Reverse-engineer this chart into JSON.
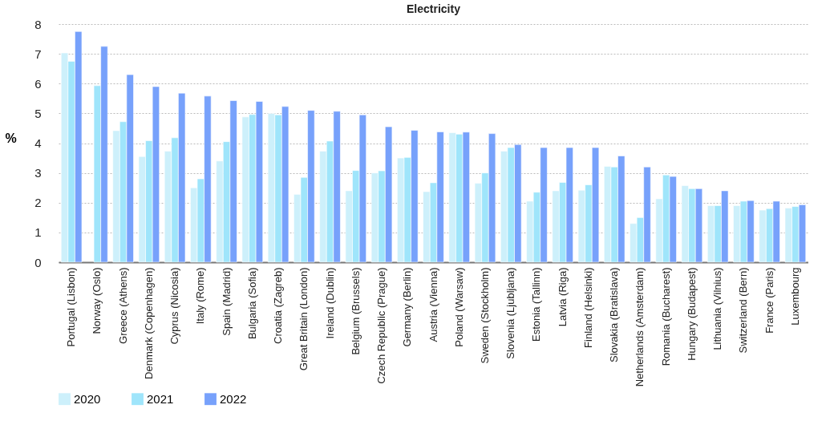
{
  "chart_data": {
    "type": "bar",
    "title": "Electricity",
    "ylabel": "%",
    "categories": [
      "Portugal (Lisbon)",
      "Norway (Oslo)",
      "Greece (Athens)",
      "Denmark (Copenhagen)",
      "Cyprus (Nicosia)",
      "Italy (Rome)",
      "Spain (Madrid)",
      "Bulgaria (Sofia)",
      "Croatia (Zagreb)",
      "Great Britain (London)",
      "Ireland (Dublin)",
      "Belgium (Brussels)",
      "Czech Republic (Prague)",
      "Germany (Berlin)",
      "Austria (Vienna)",
      "Poland (Warsaw)",
      "Sweden (Stockholm)",
      "Slovenia (Ljubljana)",
      "Estonia (Tallinn)",
      "Latvia (Riga)",
      "Finland (Helsinki)",
      "Slovakia (Bratislava)",
      "Netherlands (Amsterdam)",
      "Romania (Bucharest)",
      "Hungary (Budapest)",
      "Lithuania (Vilnius)",
      "Switzerland (Bern)",
      "France (Paris)",
      "Luxembourg"
    ],
    "series": [
      {
        "name": "2020",
        "color": "#cdf0fb",
        "values": [
          7.03,
          null,
          4.42,
          3.55,
          3.73,
          2.5,
          3.4,
          4.88,
          5.0,
          2.28,
          3.73,
          2.4,
          3.0,
          3.5,
          2.37,
          4.35,
          2.65,
          3.73,
          2.05,
          2.4,
          2.42,
          3.22,
          1.3,
          2.13,
          2.57,
          1.9,
          1.9,
          1.75,
          1.82
        ]
      },
      {
        "name": "2021",
        "color": "#9fe5fb",
        "values": [
          6.75,
          5.93,
          4.72,
          4.08,
          4.18,
          2.8,
          4.05,
          4.96,
          4.95,
          2.85,
          4.07,
          3.08,
          3.07,
          3.52,
          2.67,
          4.3,
          3.0,
          3.85,
          2.35,
          2.68,
          2.6,
          3.2,
          1.5,
          2.93,
          2.47,
          1.9,
          2.05,
          1.8,
          1.87
        ]
      },
      {
        "name": "2022",
        "color": "#77a1fb",
        "values": [
          7.75,
          7.25,
          6.3,
          5.9,
          5.68,
          5.58,
          5.43,
          5.4,
          5.23,
          5.1,
          5.07,
          4.95,
          4.55,
          4.43,
          4.38,
          4.37,
          4.32,
          3.95,
          3.85,
          3.85,
          3.85,
          3.57,
          3.2,
          2.88,
          2.47,
          2.4,
          2.07,
          2.05,
          1.93
        ]
      }
    ],
    "ylim": [
      0,
      8
    ],
    "yticks": [
      0,
      1,
      2,
      3,
      4,
      5,
      6,
      7,
      8
    ],
    "grid": "y",
    "legend": "bottom"
  }
}
